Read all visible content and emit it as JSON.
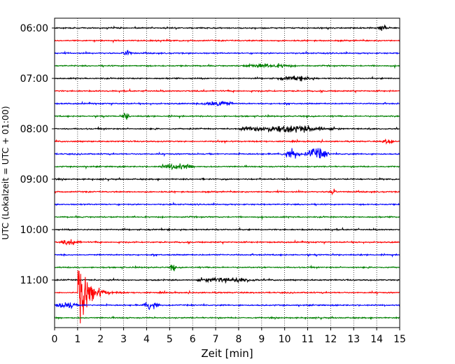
{
  "chart_data": {
    "type": "line",
    "title": "",
    "xlabel": "Zeit  [min]",
    "ylabel": "UTC (Lokalzeit = UTC + 01:00)",
    "xlim": [
      0,
      15
    ],
    "x_ticks": [
      "0",
      "1",
      "2",
      "3",
      "4",
      "5",
      "6",
      "7",
      "8",
      "9",
      "10",
      "11",
      "12",
      "13",
      "14",
      "15"
    ],
    "y_ticks": [
      "06:00",
      "07:00",
      "08:00",
      "09:00",
      "10:00",
      "11:00"
    ],
    "grid": "vertical-dotted",
    "trace_interval_min": 15,
    "color_cycle": [
      "#000000",
      "#ff0000",
      "#0000ff",
      "#008000"
    ],
    "traces": [
      {
        "time": "06:00",
        "color": "#000000",
        "events": [
          {
            "x": 14.0,
            "amp": 0.3,
            "dur": 0.6
          }
        ]
      },
      {
        "time": "06:15",
        "color": "#ff0000",
        "events": []
      },
      {
        "time": "06:30",
        "color": "#0000ff",
        "events": [
          {
            "x": 2.9,
            "amp": 0.4,
            "dur": 0.5
          }
        ]
      },
      {
        "time": "06:45",
        "color": "#008000",
        "events": [
          {
            "x": 8.0,
            "amp": 0.25,
            "dur": 2.5
          }
        ]
      },
      {
        "time": "07:00",
        "color": "#000000",
        "events": [
          {
            "x": 9.5,
            "amp": 0.25,
            "dur": 2.0
          }
        ]
      },
      {
        "time": "07:15",
        "color": "#ff0000",
        "events": []
      },
      {
        "time": "07:30",
        "color": "#0000ff",
        "events": [
          {
            "x": 6.3,
            "amp": 0.45,
            "dur": 1.5
          }
        ]
      },
      {
        "time": "07:45",
        "color": "#008000",
        "events": [
          {
            "x": 2.9,
            "amp": 0.5,
            "dur": 0.4
          }
        ]
      },
      {
        "time": "08:00",
        "color": "#000000",
        "events": [
          {
            "x": 7.8,
            "amp": 0.45,
            "dur": 4.5
          }
        ]
      },
      {
        "time": "08:15",
        "color": "#ff0000",
        "events": [
          {
            "x": 14.2,
            "amp": 0.4,
            "dur": 0.6
          }
        ]
      },
      {
        "time": "08:30",
        "color": "#0000ff",
        "events": [
          {
            "x": 9.85,
            "amp": 0.7,
            "dur": 0.9
          },
          {
            "x": 10.8,
            "amp": 0.75,
            "dur": 1.2
          }
        ]
      },
      {
        "time": "08:45",
        "color": "#008000",
        "events": [
          {
            "x": 4.5,
            "amp": 0.4,
            "dur": 1.6
          }
        ]
      },
      {
        "time": "09:00",
        "color": "#000000",
        "events": []
      },
      {
        "time": "09:15",
        "color": "#ff0000",
        "events": [
          {
            "x": 11.9,
            "amp": 0.35,
            "dur": 0.4
          }
        ]
      },
      {
        "time": "09:30",
        "color": "#0000ff",
        "events": []
      },
      {
        "time": "09:45",
        "color": "#008000",
        "events": []
      },
      {
        "time": "10:00",
        "color": "#000000",
        "events": []
      },
      {
        "time": "10:15",
        "color": "#ff0000",
        "events": [
          {
            "x": 0.2,
            "amp": 0.35,
            "dur": 1.0
          }
        ]
      },
      {
        "time": "10:30",
        "color": "#0000ff",
        "events": []
      },
      {
        "time": "10:45",
        "color": "#008000",
        "events": [
          {
            "x": 5.0,
            "amp": 0.5,
            "dur": 0.3
          }
        ]
      },
      {
        "time": "11:00",
        "color": "#000000",
        "events": [
          {
            "x": 6.0,
            "amp": 0.25,
            "dur": 3.0
          }
        ]
      },
      {
        "time": "11:15",
        "color": "#ff0000",
        "events": [
          {
            "x": 1.05,
            "amp": 4.2,
            "dur": 2.2,
            "big": true
          }
        ]
      },
      {
        "time": "11:30",
        "color": "#0000ff",
        "events": [
          {
            "x": 0.0,
            "amp": 0.5,
            "dur": 1.0
          },
          {
            "x": 3.8,
            "amp": 0.7,
            "dur": 0.8
          }
        ]
      },
      {
        "time": "11:45",
        "color": "#008000",
        "events": []
      }
    ]
  }
}
